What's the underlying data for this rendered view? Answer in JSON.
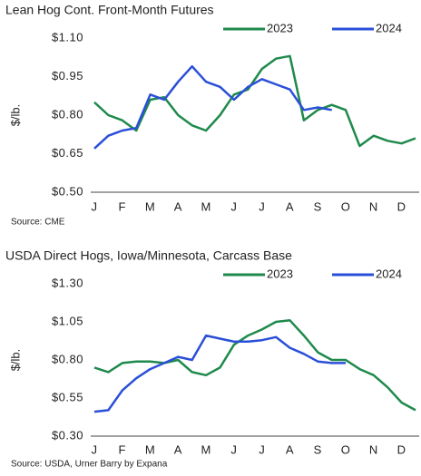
{
  "chart_data": [
    {
      "type": "line",
      "title": "Lean Hog Cont. Front-Month Futures",
      "y_label": "$/lb.",
      "source": "Source: CME",
      "categories": [
        "J",
        null,
        "F",
        null,
        "M",
        null,
        "A",
        null,
        "M",
        null,
        "J",
        null,
        "J",
        null,
        "A",
        null,
        "S",
        null,
        "O",
        null,
        "N",
        null,
        "D",
        null
      ],
      "ylim": [
        0.5,
        1.1
      ],
      "yticks": [
        {
          "value": 0.5,
          "label": "$0.50"
        },
        {
          "value": 0.65,
          "label": "$0.65"
        },
        {
          "value": 0.8,
          "label": "$0.80"
        },
        {
          "value": 0.95,
          "label": "$0.95"
        },
        {
          "value": 1.1,
          "label": "$1.10"
        }
      ],
      "legend": "top-right",
      "series": [
        {
          "name": "2023",
          "color": "#1f8a4c",
          "values": [
            0.85,
            0.8,
            0.78,
            0.74,
            0.86,
            0.87,
            0.8,
            0.76,
            0.74,
            0.8,
            0.88,
            0.9,
            0.98,
            1.02,
            1.03,
            0.78,
            0.82,
            0.84,
            0.82,
            0.68,
            0.72,
            0.7,
            0.69,
            0.71
          ]
        },
        {
          "name": "2024",
          "color": "#2a4fd8",
          "values": [
            0.67,
            0.72,
            0.74,
            0.75,
            0.88,
            0.86,
            0.93,
            0.99,
            0.93,
            0.91,
            0.86,
            0.91,
            0.94,
            0.92,
            0.9,
            0.82,
            0.83,
            0.82,
            null,
            null,
            null,
            null,
            null,
            null
          ]
        }
      ]
    },
    {
      "type": "line",
      "title": "USDA Direct Hogs,  Iowa/Minnesota, Carcass Base",
      "y_label": "$/lb.",
      "source": "Source: USDA, Urner Barry by Expana",
      "categories": [
        "J",
        null,
        "F",
        null,
        "M",
        null,
        "A",
        null,
        "M",
        null,
        "J",
        null,
        "J",
        null,
        "A",
        null,
        "S",
        null,
        "O",
        null,
        "N",
        null,
        "D",
        null
      ],
      "ylim": [
        0.3,
        1.3
      ],
      "yticks": [
        {
          "value": 0.3,
          "label": "$0.30"
        },
        {
          "value": 0.55,
          "label": "$0.55"
        },
        {
          "value": 0.8,
          "label": "$0.80"
        },
        {
          "value": 1.05,
          "label": "$1.05"
        },
        {
          "value": 1.3,
          "label": "$1.30"
        }
      ],
      "legend": "top-right",
      "series": [
        {
          "name": "2023",
          "color": "#1f8a4c",
          "values": [
            0.75,
            0.72,
            0.78,
            0.79,
            0.79,
            0.78,
            0.8,
            0.72,
            0.7,
            0.75,
            0.9,
            0.96,
            1.0,
            1.05,
            1.06,
            0.96,
            0.85,
            0.8,
            0.8,
            0.74,
            0.7,
            0.62,
            0.52,
            0.47
          ]
        },
        {
          "name": "2024",
          "color": "#2a4fd8",
          "values": [
            0.46,
            0.47,
            0.6,
            0.68,
            0.74,
            0.78,
            0.82,
            0.8,
            0.96,
            0.94,
            0.92,
            0.92,
            0.93,
            0.95,
            0.88,
            0.84,
            0.79,
            0.78,
            0.78,
            null,
            null,
            null,
            null,
            null
          ]
        }
      ]
    }
  ]
}
